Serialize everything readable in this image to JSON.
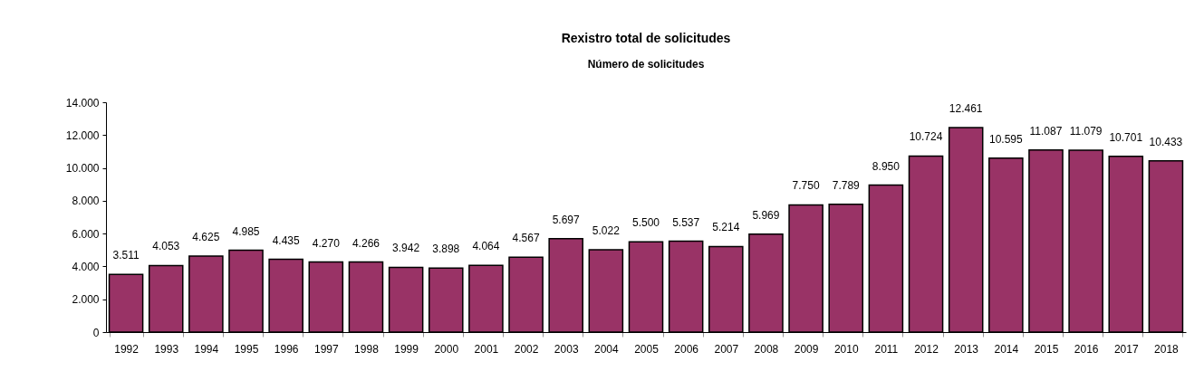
{
  "chart_data": {
    "type": "bar",
    "title": "Rexistro total de solicitudes",
    "subtitle": "Número de solicitudes",
    "categories": [
      "1992",
      "1993",
      "1994",
      "1995",
      "1996",
      "1997",
      "1998",
      "1999",
      "2000",
      "2001",
      "2002",
      "2003",
      "2004",
      "2005",
      "2006",
      "2007",
      "2008",
      "2009",
      "2010",
      "2011",
      "2012",
      "2013",
      "2014",
      "2015",
      "2016",
      "2017",
      "2018"
    ],
    "values": [
      3511,
      4053,
      4625,
      4985,
      4435,
      4270,
      4266,
      3942,
      3898,
      4064,
      4567,
      5697,
      5022,
      5500,
      5537,
      5214,
      5969,
      7750,
      7789,
      8950,
      10724,
      12461,
      10595,
      11087,
      11079,
      10701,
      10433
    ],
    "value_labels": [
      "3.511",
      "4.053",
      "4.625",
      "4.985",
      "4.435",
      "4.270",
      "4.266",
      "3.942",
      "3.898",
      "4.064",
      "4.567",
      "5.697",
      "5.022",
      "5.500",
      "5.537",
      "5.214",
      "5.969",
      "7.750",
      "7.789",
      "8.950",
      "10.724",
      "12.461",
      "10.595",
      "11.087",
      "11.079",
      "10.701",
      "10.433"
    ],
    "color": "#993366",
    "ylim": [
      0,
      14000
    ],
    "yticks": [
      0,
      {
        "value": 2000,
        "label": "2.000"
      },
      {
        "value": 4000,
        "label": "4.000"
      },
      {
        "value": 6000,
        "label": "6.000"
      },
      {
        "value": 8000,
        "label": "8.000"
      },
      {
        "value": 10000,
        "label": "10.000"
      },
      {
        "value": 12000,
        "label": "12.000"
      },
      {
        "value": 14000,
        "label": "14.000"
      }
    ],
    "grid": false
  }
}
